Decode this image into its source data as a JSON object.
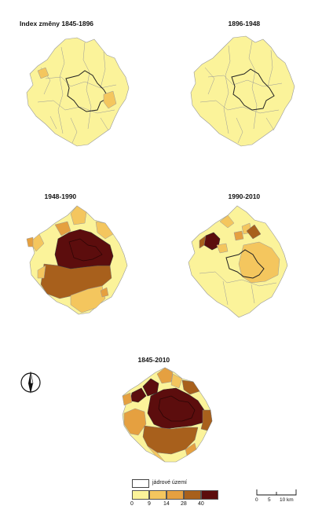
{
  "colors": {
    "c0": "#fbf39a",
    "c1": "#f4c65e",
    "c2": "#e5a040",
    "c3": "#a8601c",
    "c4": "#5c0d0d"
  },
  "panels": [
    {
      "title": "Index změny 1845-1896"
    },
    {
      "title": "1896-1948"
    },
    {
      "title": "1948-1990"
    },
    {
      "title": "1990-2010"
    },
    {
      "title": "1845-2010"
    }
  ],
  "legend": {
    "core_label": "jádrové území",
    "breaks": [
      "0",
      "9",
      "14",
      "28",
      "40"
    ]
  },
  "scale_bar": {
    "labels": [
      "0",
      "5",
      "10 km"
    ]
  },
  "north_arrow": {
    "icon": "north-arrow-icon"
  }
}
